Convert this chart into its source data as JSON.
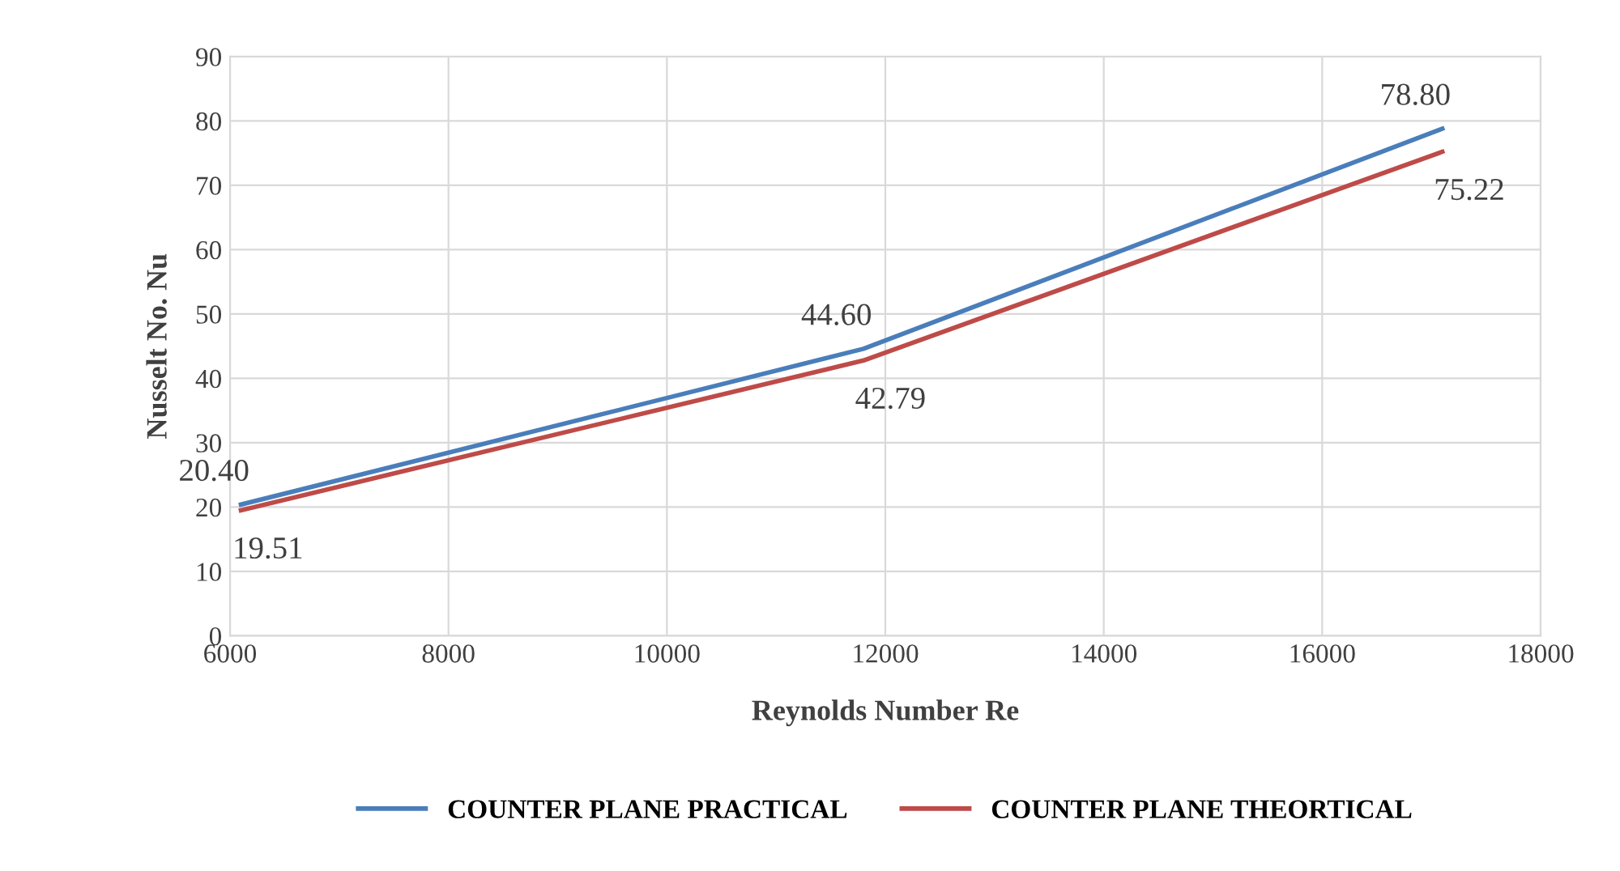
{
  "chart_data": {
    "type": "line",
    "xlabel": "Reynolds Number Re",
    "ylabel": "Nusselt No. Nu",
    "x": [
      6100,
      11800,
      17100
    ],
    "series": [
      {
        "name": "COUNTER PLANE PRACTICAL",
        "color": "#4a7ebb",
        "values": [
          20.4,
          44.6,
          78.8
        ],
        "value_labels": [
          "20.40",
          "44.60",
          "78.80"
        ]
      },
      {
        "name": "COUNTER PLANE THEORTICAL",
        "color": "#be4b48",
        "values": [
          19.51,
          42.79,
          75.22
        ],
        "value_labels": [
          "19.51",
          "42.79",
          "75.22"
        ]
      }
    ],
    "xlim": [
      6000,
      18000
    ],
    "xticks": [
      6000,
      8000,
      10000,
      12000,
      14000,
      16000,
      18000
    ],
    "ylim": [
      0,
      90
    ],
    "yticks": [
      0,
      10,
      20,
      30,
      40,
      50,
      60,
      70,
      80,
      90
    ],
    "grid": true,
    "legend": "bottom",
    "marker": "none",
    "line_style": "solid"
  }
}
